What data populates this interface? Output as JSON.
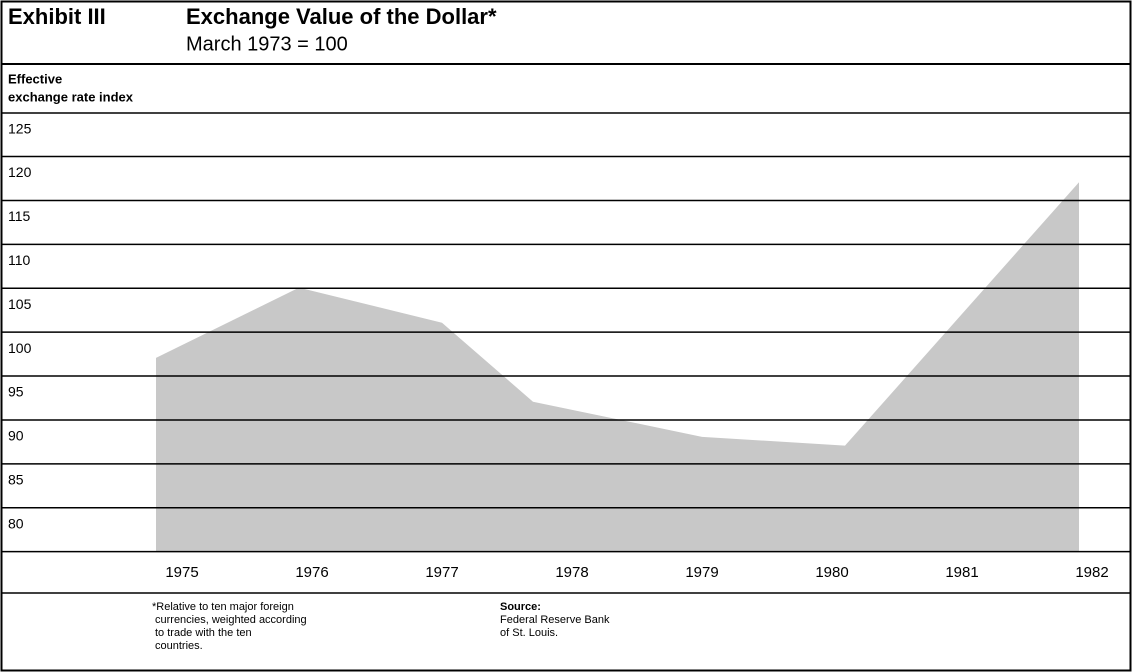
{
  "chart_data": {
    "type": "area",
    "exhibit": "Exhibit III",
    "title": "Exchange Value of the Dollar*",
    "subtitle": "March 1973 = 100",
    "y_label": [
      "Effective",
      "exchange rate index"
    ],
    "x": [
      1974.8,
      1975.9,
      1977.0,
      1977.7,
      1979.0,
      1980.1,
      1981.9
    ],
    "values": [
      99,
      107,
      103,
      94,
      90,
      89,
      119
    ],
    "color": "#c8c8c8",
    "xlim": [
      1974.5,
      1982.2
    ],
    "xticks": [
      1975,
      1976,
      1977,
      1978,
      1979,
      1980,
      1981,
      1982
    ],
    "ylim": [
      77,
      127
    ],
    "yticks": [
      125,
      120,
      115,
      110,
      105,
      100,
      95,
      90,
      85,
      80
    ],
    "grid": true,
    "footnote": [
      "*Relative to ten major foreign",
      "currencies, weighted according",
      "to trade with the ten",
      "countries."
    ],
    "source_label": "Source:",
    "source": [
      "Federal Reserve Bank",
      "of St. Louis."
    ]
  }
}
